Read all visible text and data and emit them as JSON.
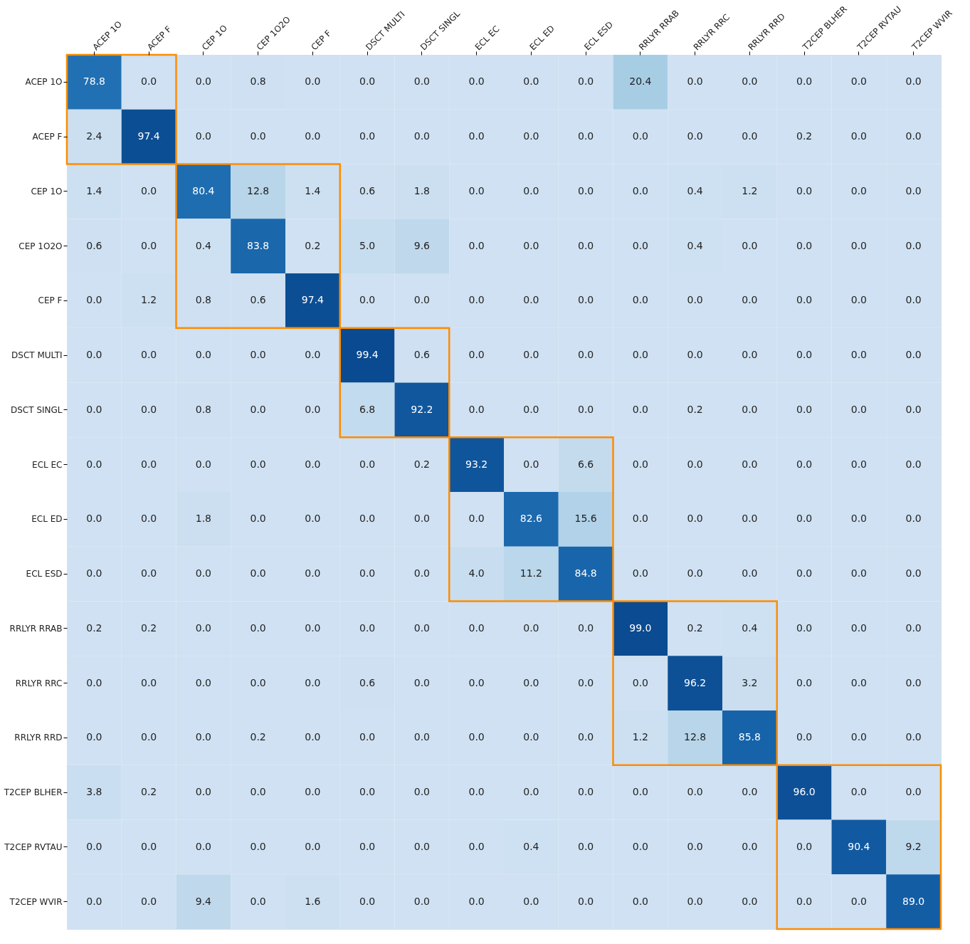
{
  "chart_data": {
    "type": "heatmap",
    "legend": false,
    "categories": [
      "ACEP 1O",
      "ACEP F",
      "CEP 1O",
      "CEP 1O2O",
      "CEP F",
      "DSCT MULTI",
      "DSCT SINGL",
      "ECL EC",
      "ECL ED",
      "ECL ESD",
      "RRLYR RRAB",
      "RRLYR RRC",
      "RRLYR RRD",
      "T2CEP BLHER",
      "T2CEP RVTAU",
      "T2CEP WVIR"
    ],
    "y_categories": [
      "ACEP 1O",
      "ACEP F",
      "CEP 1O",
      "CEP 1O2O",
      "CEP F",
      "DSCT MULTI",
      "DSCT SINGL",
      "ECL EC",
      "ECL ED",
      "ECL ESD",
      "RRLYR RRAB",
      "RRLYR RRC",
      "RRLYR RRD",
      "T2CEP BLHER",
      "T2CEP RVTAU",
      "T2CEP WVIR"
    ],
    "cells": [
      [
        78.8,
        0.0,
        0.0,
        0.8,
        0.0,
        0.0,
        0.0,
        0.0,
        0.0,
        0.0,
        20.4,
        0.0,
        0.0,
        0.0,
        0.0,
        0.0
      ],
      [
        2.4,
        97.4,
        0.0,
        0.0,
        0.0,
        0.0,
        0.0,
        0.0,
        0.0,
        0.0,
        0.0,
        0.0,
        0.0,
        0.2,
        0.0,
        0.0
      ],
      [
        1.4,
        0.0,
        80.4,
        12.8,
        1.4,
        0.6,
        1.8,
        0.0,
        0.0,
        0.0,
        0.0,
        0.4,
        1.2,
        0.0,
        0.0,
        0.0
      ],
      [
        0.6,
        0.0,
        0.4,
        83.8,
        0.2,
        5.0,
        9.6,
        0.0,
        0.0,
        0.0,
        0.0,
        0.4,
        0.0,
        0.0,
        0.0,
        0.0
      ],
      [
        0.0,
        1.2,
        0.8,
        0.6,
        97.4,
        0.0,
        0.0,
        0.0,
        0.0,
        0.0,
        0.0,
        0.0,
        0.0,
        0.0,
        0.0,
        0.0
      ],
      [
        0.0,
        0.0,
        0.0,
        0.0,
        0.0,
        99.4,
        0.6,
        0.0,
        0.0,
        0.0,
        0.0,
        0.0,
        0.0,
        0.0,
        0.0,
        0.0
      ],
      [
        0.0,
        0.0,
        0.8,
        0.0,
        0.0,
        6.8,
        92.2,
        0.0,
        0.0,
        0.0,
        0.0,
        0.2,
        0.0,
        0.0,
        0.0,
        0.0
      ],
      [
        0.0,
        0.0,
        0.0,
        0.0,
        0.0,
        0.0,
        0.2,
        93.2,
        0.0,
        6.6,
        0.0,
        0.0,
        0.0,
        0.0,
        0.0,
        0.0
      ],
      [
        0.0,
        0.0,
        1.8,
        0.0,
        0.0,
        0.0,
        0.0,
        0.0,
        82.6,
        15.6,
        0.0,
        0.0,
        0.0,
        0.0,
        0.0,
        0.0
      ],
      [
        0.0,
        0.0,
        0.0,
        0.0,
        0.0,
        0.0,
        0.0,
        4.0,
        11.2,
        84.8,
        0.0,
        0.0,
        0.0,
        0.0,
        0.0,
        0.0
      ],
      [
        0.2,
        0.2,
        0.0,
        0.0,
        0.0,
        0.0,
        0.0,
        0.0,
        0.0,
        0.0,
        99.0,
        0.2,
        0.4,
        0.0,
        0.0,
        0.0
      ],
      [
        0.0,
        0.0,
        0.0,
        0.0,
        0.0,
        0.6,
        0.0,
        0.0,
        0.0,
        0.0,
        0.0,
        96.2,
        3.2,
        0.0,
        0.0,
        0.0
      ],
      [
        0.0,
        0.0,
        0.0,
        0.2,
        0.0,
        0.0,
        0.0,
        0.0,
        0.0,
        0.0,
        1.2,
        12.8,
        85.8,
        0.0,
        0.0,
        0.0
      ],
      [
        3.8,
        0.2,
        0.0,
        0.0,
        0.0,
        0.0,
        0.0,
        0.0,
        0.0,
        0.0,
        0.0,
        0.0,
        0.0,
        96.0,
        0.0,
        0.0
      ],
      [
        0.0,
        0.0,
        0.0,
        0.0,
        0.0,
        0.0,
        0.0,
        0.0,
        0.4,
        0.0,
        0.0,
        0.0,
        0.0,
        0.0,
        90.4,
        9.2
      ],
      [
        0.0,
        0.0,
        9.4,
        0.0,
        1.6,
        0.0,
        0.0,
        0.0,
        0.0,
        0.0,
        0.0,
        0.0,
        0.0,
        0.0,
        0.0,
        89.0
      ]
    ],
    "cell_labels": [
      [
        "78.8",
        "0.0",
        "0.0",
        "0.8",
        "0.0",
        "0.0",
        "0.0",
        "0.0",
        "0.0",
        "0.0",
        "20.4",
        "0.0",
        "0.0",
        "0.0",
        "0.0",
        "0.0"
      ],
      [
        "2.4",
        "97.4",
        "0.0",
        "0.0",
        "0.0",
        "0.0",
        "0.0",
        "0.0",
        "0.0",
        "0.0",
        "0.0",
        "0.0",
        "0.0",
        "0.2",
        "0.0",
        "0.0"
      ],
      [
        "1.4",
        "0.0",
        "80.4",
        "12.8",
        "1.4",
        "0.6",
        "1.8",
        "0.0",
        "0.0",
        "0.0",
        "0.0",
        "0.4",
        "1.2",
        "0.0",
        "0.0",
        "0.0"
      ],
      [
        "0.6",
        "0.0",
        "0.4",
        "83.8",
        "0.2",
        "5.0",
        "9.6",
        "0.0",
        "0.0",
        "0.0",
        "0.0",
        "0.4",
        "0.0",
        "0.0",
        "0.0",
        "0.0"
      ],
      [
        "0.0",
        "1.2",
        "0.8",
        "0.6",
        "97.4",
        "0.0",
        "0.0",
        "0.0",
        "0.0",
        "0.0",
        "0.0",
        "0.0",
        "0.0",
        "0.0",
        "0.0",
        "0.0"
      ],
      [
        "0.0",
        "0.0",
        "0.0",
        "0.0",
        "0.0",
        "99.4",
        "0.6",
        "0.0",
        "0.0",
        "0.0",
        "0.0",
        "0.0",
        "0.0",
        "0.0",
        "0.0",
        "0.0"
      ],
      [
        "0.0",
        "0.0",
        "0.8",
        "0.0",
        "0.0",
        "6.8",
        "92.2",
        "0.0",
        "0.0",
        "0.0",
        "0.0",
        "0.2",
        "0.0",
        "0.0",
        "0.0",
        "0.0"
      ],
      [
        "0.0",
        "0.0",
        "0.0",
        "0.0",
        "0.0",
        "0.0",
        "0.2",
        "93.2",
        "0.0",
        "6.6",
        "0.0",
        "0.0",
        "0.0",
        "0.0",
        "0.0",
        "0.0"
      ],
      [
        "0.0",
        "0.0",
        "1.8",
        "0.0",
        "0.0",
        "0.0",
        "0.0",
        "0.0",
        "82.6",
        "15.6",
        "0.0",
        "0.0",
        "0.0",
        "0.0",
        "0.0",
        "0.0"
      ],
      [
        "0.0",
        "0.0",
        "0.0",
        "0.0",
        "0.0",
        "0.0",
        "0.0",
        "4.0",
        "11.2",
        "84.8",
        "0.0",
        "0.0",
        "0.0",
        "0.0",
        "0.0",
        "0.0"
      ],
      [
        "0.2",
        "0.2",
        "0.0",
        "0.0",
        "0.0",
        "0.0",
        "0.0",
        "0.0",
        "0.0",
        "0.0",
        "99.0",
        "0.2",
        "0.4",
        "0.0",
        "0.0",
        "0.0"
      ],
      [
        "0.0",
        "0.0",
        "0.0",
        "0.0",
        "0.0",
        "0.6",
        "0.0",
        "0.0",
        "0.0",
        "0.0",
        "0.0",
        "96.2",
        "3.2",
        "0.0",
        "0.0",
        "0.0"
      ],
      [
        "0.0",
        "0.0",
        "0.0",
        "0.2",
        "0.0",
        "0.0",
        "0.0",
        "0.0",
        "0.0",
        "0.0",
        "1.2",
        "12.8",
        "85.8",
        "0.0",
        "0.0",
        "0.0"
      ],
      [
        "3.8",
        "0.2",
        "0.0",
        "0.0",
        "0.0",
        "0.0",
        "0.0",
        "0.0",
        "0.0",
        "0.0",
        "0.0",
        "0.0",
        "0.0",
        "96.0",
        "0.0",
        "0.0"
      ],
      [
        "0.0",
        "0.0",
        "0.0",
        "0.0",
        "0.0",
        "0.0",
        "0.0",
        "0.0",
        "0.4",
        "0.0",
        "0.0",
        "0.0",
        "0.0",
        "0.0",
        "90.4",
        "9.2"
      ],
      [
        "0.0",
        "0.0",
        "9.4",
        "0.0",
        "1.6",
        "0.0",
        "0.0",
        "0.0",
        "0.0",
        "0.0",
        "0.0",
        "0.0",
        "0.0",
        "0.0",
        "0.0",
        "89.0"
      ]
    ]
  }
}
